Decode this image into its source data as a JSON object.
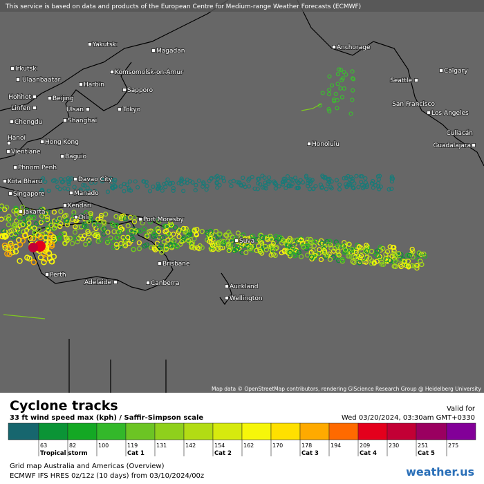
{
  "notice": "This service is based on data and products of the European Centre for Medium-range Weather Forecasts (ECMWF)",
  "attribution": "Map data © OpenStreetMap contributors, rendering GIScience Research Group @ Heidelberg University",
  "cities": [
    "Yakutsk",
    "Magadan",
    "Anchorage",
    "Irkutsk",
    "Ulaanbaatar",
    "Komsomolsk-on-Amur",
    "Calgary",
    "Harbin",
    "Seattle",
    "Hohhot",
    "Beijing",
    "Sapporo",
    "San Francisco",
    "Linfen",
    "Ulsan",
    "Tokyo",
    "Los Angeles",
    "Chengdu",
    "Shanghai",
    "Culiacán",
    "Hanoi",
    "Hong Kong",
    "Honolulu",
    "Guadalajara",
    "Vientiane",
    "Baguio",
    "Phnom Penh",
    "Davao City",
    "Kota Bharu",
    "Singapore",
    "Manado",
    "Kendari",
    "Jakarta",
    "Dili",
    "Port Moresby",
    "Suva",
    "Perth",
    "Brisbane",
    "Adelaide",
    "Canberra",
    "Auckland",
    "Wellington"
  ],
  "legend": {
    "title": "Cyclone tracks",
    "subtitle": "33 ft wind speed max (kph) / Saffir-Simpson scale",
    "valid_label": "Valid for",
    "valid_date": "Wed 03/20/2024, 03:30am GMT+0330",
    "colors": [
      "#17666e",
      "#0b9436",
      "#14a824",
      "#33b82a",
      "#6cc424",
      "#8fd01c",
      "#b2dc14",
      "#d6ea0e",
      "#f6f60a",
      "#ffe000",
      "#ffaa00",
      "#ff6a00",
      "#e4001c",
      "#c20035",
      "#9a0060",
      "#820098"
    ],
    "ticks": [
      63,
      82,
      100,
      119,
      131,
      142,
      154,
      162,
      170,
      178,
      194,
      209,
      230,
      251,
      275
    ],
    "categories": [
      "Tropical storm",
      "Cat 1",
      "Cat 2",
      "Cat 3",
      "Cat 4",
      "Cat 5"
    ]
  },
  "footer": {
    "map_name": "Grid map Australia and Americas (Overview)",
    "model": "ECMWF IFS HRES 0z/12z (10 days) from 03/10/2024/00z",
    "logo": "weather.us"
  }
}
